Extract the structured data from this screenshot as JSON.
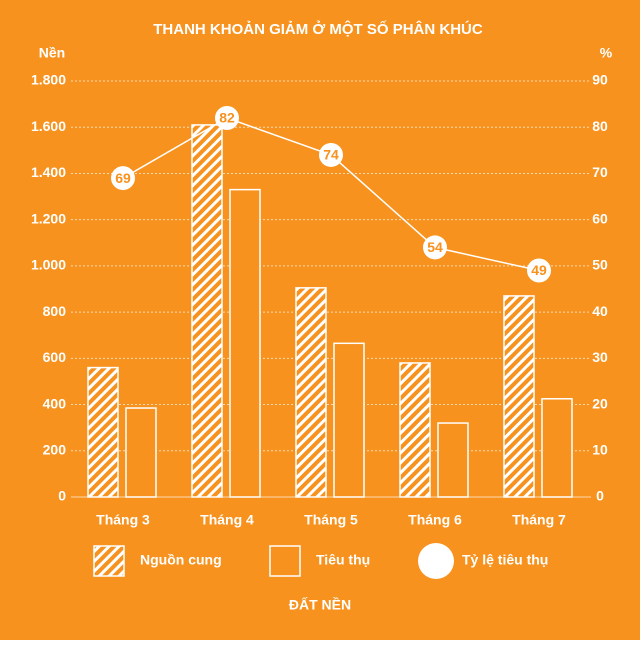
{
  "chart_data": {
    "type": "bar",
    "title": "THANH KHOẢN GIẢM Ở MỘT SỐ PHÂN KHÚC",
    "ylabel": "Nền",
    "y2label": "%",
    "xlabel": "ĐẤT NỀN",
    "categories": [
      "Tháng 3",
      "Tháng 4",
      "Tháng 5",
      "Tháng 6",
      "Tháng 7"
    ],
    "series": [
      {
        "name": "Nguồn cung",
        "color": "#ffffff",
        "pattern": "hatch",
        "values": [
          560,
          1610,
          905,
          580,
          870
        ]
      },
      {
        "name": "Tiêu thụ",
        "color": "#ffffff",
        "values": [
          385,
          1330,
          665,
          320,
          425
        ]
      },
      {
        "name": "Tỷ lệ tiêu thụ",
        "type": "line",
        "axis": "y2",
        "color": "#ffffff",
        "values": [
          69,
          82,
          74,
          54,
          49
        ]
      }
    ],
    "ylim": [
      0,
      1800
    ],
    "yticks": [
      0,
      200,
      400,
      600,
      800,
      {
        "value": 1000,
        "label": "1.000"
      },
      {
        "value": 1200,
        "label": "1.200"
      },
      {
        "value": 1400,
        "label": "1.400"
      },
      {
        "value": 1600,
        "label": "1.600"
      },
      {
        "value": 1800,
        "label": "1.800"
      }
    ],
    "y2lim": [
      0,
      90
    ],
    "y2ticks": [
      0,
      10,
      20,
      30,
      40,
      50,
      60,
      70,
      80,
      90
    ],
    "grid": true,
    "background": "#f7921e"
  }
}
